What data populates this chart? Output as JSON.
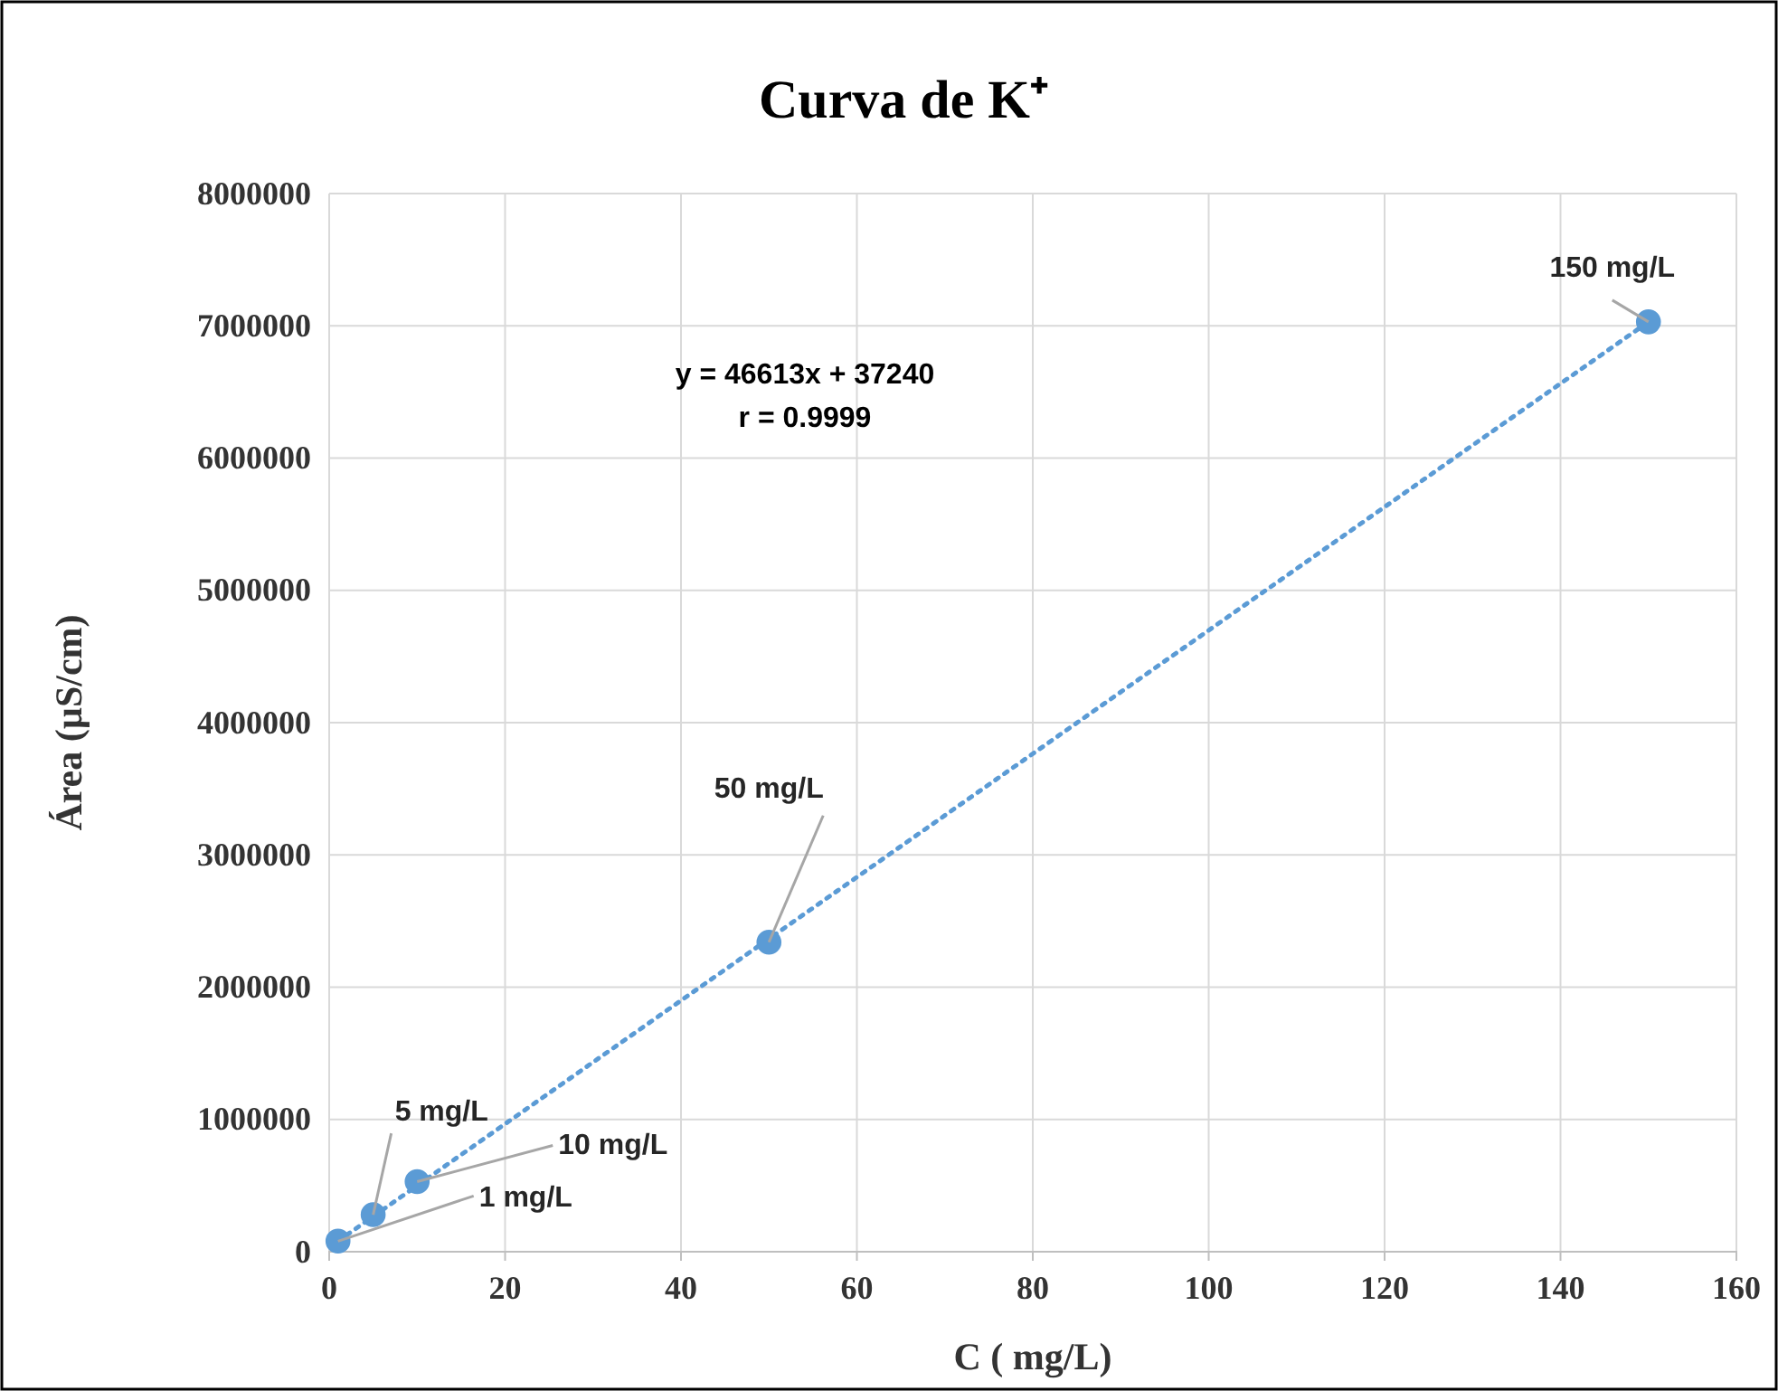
{
  "chart_data": {
    "type": "scatter",
    "title": "Curva de K⁺",
    "xlabel": "C ( mg/L)",
    "ylabel": "Área (µS/cm)",
    "xlim": [
      0,
      160
    ],
    "xticks": [
      0,
      20,
      40,
      60,
      80,
      100,
      120,
      140,
      160
    ],
    "ylim": [
      0,
      8000000
    ],
    "yticks": [
      0,
      1000000,
      2000000,
      3000000,
      4000000,
      5000000,
      6000000,
      7000000,
      8000000
    ],
    "grid": true,
    "marker": "circle",
    "series": [
      {
        "type": "line",
        "color": "#5b9bd5",
        "line_style": "dotted",
        "marker": "none",
        "x": [
          1,
          150
        ],
        "values": [
          80000,
          7030000
        ]
      },
      {
        "color": "#5b9bd5",
        "x": [
          1,
          5,
          10,
          50,
          150
        ],
        "values": [
          80000,
          280000,
          530000,
          2340000,
          7030000
        ]
      }
    ],
    "annotations": [
      {
        "text": "1 mg/L",
        "x": 1,
        "y": 80000
      },
      {
        "text": "5 mg/L",
        "x": 5,
        "y": 280000
      },
      {
        "text": "10 mg/L",
        "x": 10,
        "y": 530000
      },
      {
        "text": "50 mg/L",
        "x": 50,
        "y": 2340000
      },
      {
        "text": "150 mg/L",
        "x": 150,
        "y": 7030000
      },
      "y = 46613x + 37240",
      "r = 0.9999"
    ]
  }
}
